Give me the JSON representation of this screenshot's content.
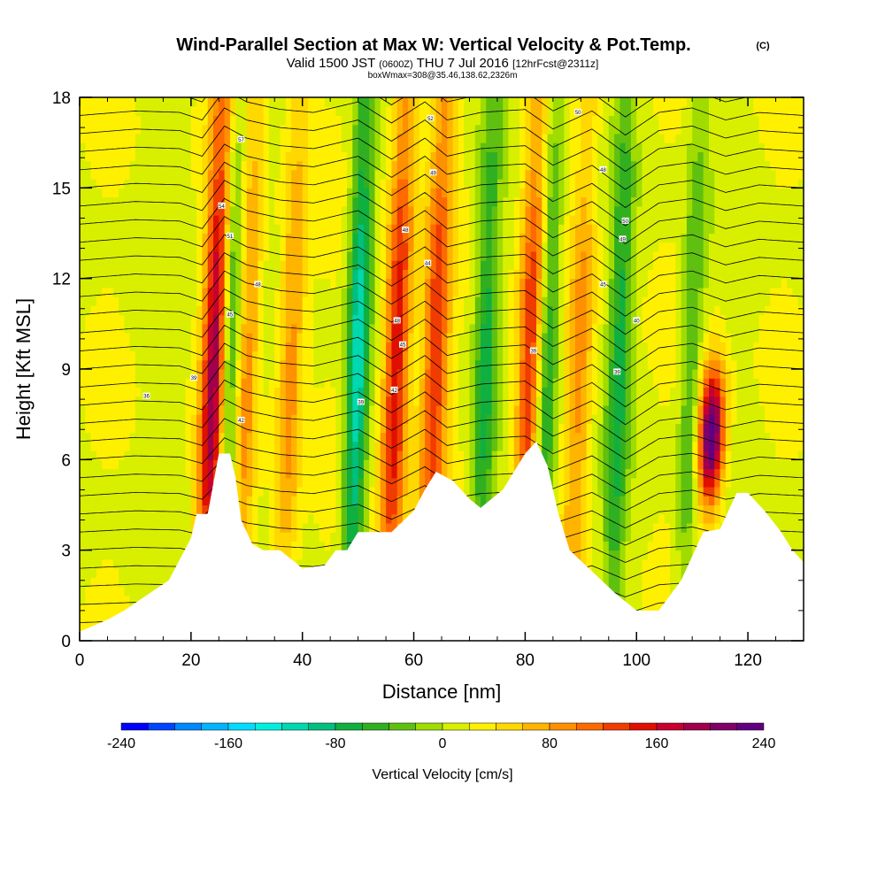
{
  "header": {
    "title": "Wind-Parallel Section at Max W: Vertical Velocity & Pot.Temp.",
    "copyright": "(C)",
    "valid_prefix": "Valid 1500 JST",
    "valid_z": "(0600Z)",
    "valid_date": "THU 7 Jul 2016",
    "forecast": "[12hrFcst@2311z]",
    "boxwmax": "boxWmax=308@35.46,138.62,2326m"
  },
  "chart_data": {
    "type": "heatmap",
    "xlabel": "Distance [nm]",
    "ylabel": "Height [Kft MSL]",
    "xlim": [
      0,
      130
    ],
    "ylim": [
      0,
      18
    ],
    "xticks": [
      "0",
      "20",
      "40",
      "60",
      "80",
      "100",
      "120"
    ],
    "yticks": [
      "0",
      "3",
      "6",
      "9",
      "12",
      "15",
      "18"
    ],
    "colorbar": {
      "label": "Vertical Velocity [cm/s]",
      "range": [
        -240,
        240
      ],
      "step": 20,
      "tick_labels": [
        "-240",
        "-160",
        "-80",
        "0",
        "80",
        "160",
        "240"
      ],
      "colors": [
        "#0000ff",
        "#0044ff",
        "#0088ff",
        "#00b4ff",
        "#00dcff",
        "#00f0e0",
        "#00d8b0",
        "#00c080",
        "#10b040",
        "#30b020",
        "#60c010",
        "#a0dc00",
        "#d8f000",
        "#fff000",
        "#ffd800",
        "#ffb400",
        "#ff9000",
        "#ff6a00",
        "#f03c00",
        "#e01000",
        "#c80030",
        "#a0004a",
        "#800068",
        "#600080"
      ]
    },
    "updraft_columns": [
      {
        "x": 24.5,
        "peak": 190
      },
      {
        "x": 30,
        "peak": 80
      },
      {
        "x": 38,
        "peak": 80
      },
      {
        "x": 57,
        "peak": 150
      },
      {
        "x": 64,
        "peak": 120
      },
      {
        "x": 81,
        "peak": 130
      },
      {
        "x": 90,
        "peak": 70
      },
      {
        "x": 114,
        "peak": 240
      }
    ],
    "downdraft_columns": [
      {
        "x": 27,
        "peak": -120
      },
      {
        "x": 50,
        "peak": -130
      },
      {
        "x": 73,
        "peak": -80
      },
      {
        "x": 84,
        "peak": -90
      },
      {
        "x": 97,
        "peak": -80
      },
      {
        "x": 110,
        "peak": -60
      }
    ],
    "terrain": {
      "x": [
        0,
        5,
        8,
        12,
        16,
        18,
        20,
        21,
        23,
        25,
        27,
        28,
        29,
        31,
        33,
        36,
        40,
        44,
        46,
        48,
        50,
        52,
        56,
        60,
        62,
        64,
        67,
        70,
        72,
        76,
        80,
        82,
        84,
        86,
        88,
        92,
        96,
        100,
        104,
        108,
        112,
        115,
        118,
        120,
        123,
        126,
        128,
        130
      ],
      "height": [
        0.3,
        0.7,
        1.0,
        1.5,
        2.0,
        2.7,
        3.4,
        4.2,
        4.2,
        6.2,
        6.2,
        5.4,
        4.0,
        3.2,
        3.0,
        3.0,
        2.4,
        2.5,
        3.0,
        3.0,
        3.6,
        3.6,
        3.6,
        4.3,
        5.0,
        5.6,
        5.3,
        4.7,
        4.4,
        5.0,
        6.2,
        6.6,
        5.8,
        4.2,
        3.0,
        2.3,
        1.6,
        1.0,
        1.0,
        2.0,
        3.6,
        3.7,
        4.9,
        4.9,
        4.3,
        3.6,
        3.0,
        2.6
      ]
    },
    "isentropes": {
      "base_x": [
        0,
        10,
        18,
        22,
        26,
        30,
        36,
        42,
        50,
        56,
        62,
        66,
        72,
        80,
        85,
        92,
        98,
        104,
        110,
        116,
        122,
        130
      ],
      "wave_displacement_kft": [
        0,
        0.15,
        0.1,
        -0.15,
        0.85,
        0.45,
        0.2,
        0.1,
        0.45,
        -0.25,
        0.45,
        -0.15,
        0.1,
        0.2,
        -0.45,
        0.15,
        -0.65,
        0.1,
        0.25,
        -0.15,
        0.1,
        0
      ],
      "levels": 30,
      "labels": [
        {
          "text": "36",
          "x": 12,
          "y": 8.1
        },
        {
          "text": "39",
          "x": 20.5,
          "y": 8.7
        },
        {
          "text": "42",
          "x": 29,
          "y": 7.3
        },
        {
          "text": "45",
          "x": 27,
          "y": 10.8
        },
        {
          "text": "48",
          "x": 32,
          "y": 11.8
        },
        {
          "text": "51",
          "x": 27,
          "y": 13.4
        },
        {
          "text": "54",
          "x": 25.5,
          "y": 14.4
        },
        {
          "text": "57",
          "x": 29,
          "y": 16.6
        },
        {
          "text": "39",
          "x": 50.5,
          "y": 7.9
        },
        {
          "text": "42",
          "x": 56.5,
          "y": 8.3
        },
        {
          "text": "45",
          "x": 58,
          "y": 9.8
        },
        {
          "text": "48",
          "x": 57,
          "y": 10.6
        },
        {
          "text": "44",
          "x": 62.5,
          "y": 12.5
        },
        {
          "text": "48",
          "x": 58.5,
          "y": 13.6
        },
        {
          "text": "49",
          "x": 63.5,
          "y": 15.5
        },
        {
          "text": "52",
          "x": 63,
          "y": 17.3
        },
        {
          "text": "39",
          "x": 81.5,
          "y": 9.6
        },
        {
          "text": "39",
          "x": 96.5,
          "y": 8.9
        },
        {
          "text": "40",
          "x": 100,
          "y": 10.6
        },
        {
          "text": "45",
          "x": 94,
          "y": 11.8
        },
        {
          "text": "49",
          "x": 97.5,
          "y": 13.3
        },
        {
          "text": "50",
          "x": 98,
          "y": 13.9
        },
        {
          "text": "48",
          "x": 94,
          "y": 15.6
        },
        {
          "text": "50",
          "x": 89.5,
          "y": 17.5
        }
      ]
    }
  }
}
